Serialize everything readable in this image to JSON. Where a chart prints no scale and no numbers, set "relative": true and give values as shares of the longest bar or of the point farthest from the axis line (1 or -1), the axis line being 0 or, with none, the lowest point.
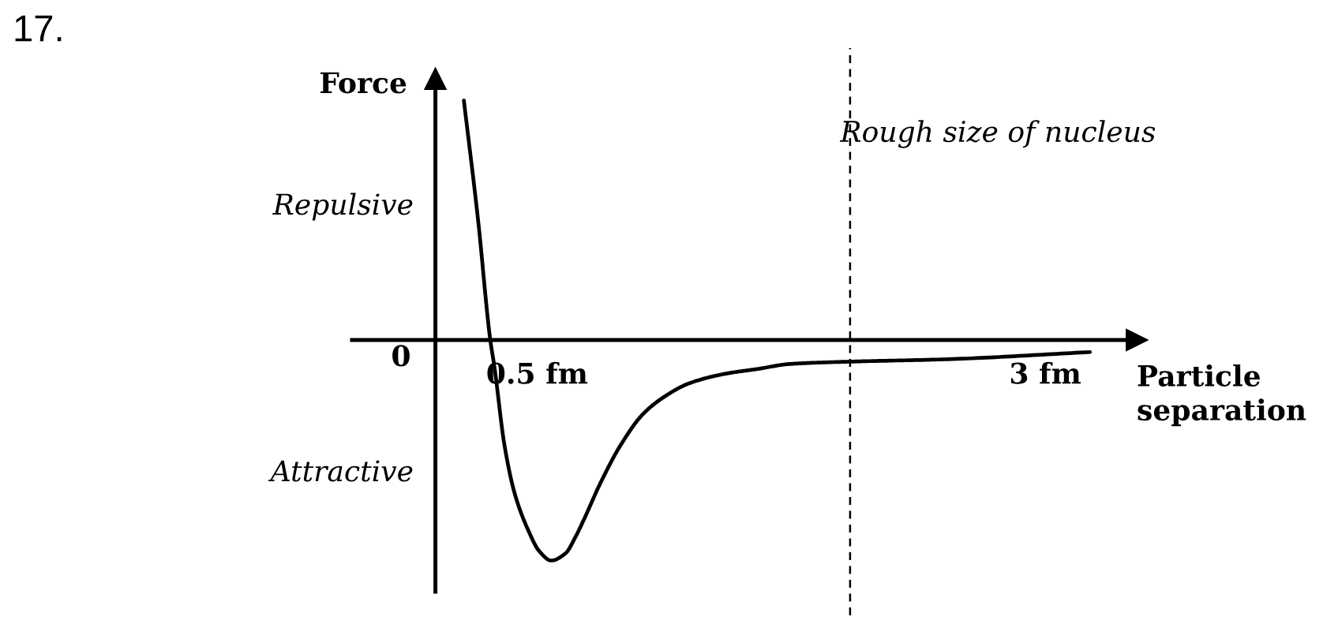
{
  "chart_data": {
    "type": "line",
    "xlabel": "Particle separation",
    "ylabel": "Force",
    "annotations": [
      "17.",
      "0",
      "Repulsive",
      "Attractive"
    ],
    "relative": true,
    "xlim": [
      -0.41,
      3.45
    ],
    "xticks": [
      {
        "value": 0.5,
        "label": "0.5 fm"
      },
      {
        "value": 3,
        "label": "3 fm"
      }
    ],
    "series": [
      {
        "color": "#000000",
        "x": [
          0.14,
          0.21,
          0.27,
          0.29,
          0.34,
          0.39,
          0.46,
          0.51,
          0.57,
          0.64,
          0.69,
          0.73,
          0.81,
          0.91,
          1.02,
          1.12,
          1.25,
          1.43,
          1.59,
          1.74,
          2.04,
          2.52,
          3.22
        ],
        "values": [
          1.0,
          0.5,
          0.0,
          -0.11,
          -0.44,
          -0.64,
          -0.8,
          -0.88,
          -0.92,
          -0.89,
          -0.82,
          -0.75,
          -0.6,
          -0.44,
          -0.31,
          -0.24,
          -0.18,
          -0.14,
          -0.12,
          -0.1,
          -0.09,
          -0.08,
          -0.05
        ]
      }
    ],
    "ref_lines": [
      {
        "axis": "x",
        "value": 2.04,
        "label": "Rough size of nucleus",
        "line_style": "dashed",
        "color": "#000000"
      }
    ],
    "line_style": "solid"
  }
}
